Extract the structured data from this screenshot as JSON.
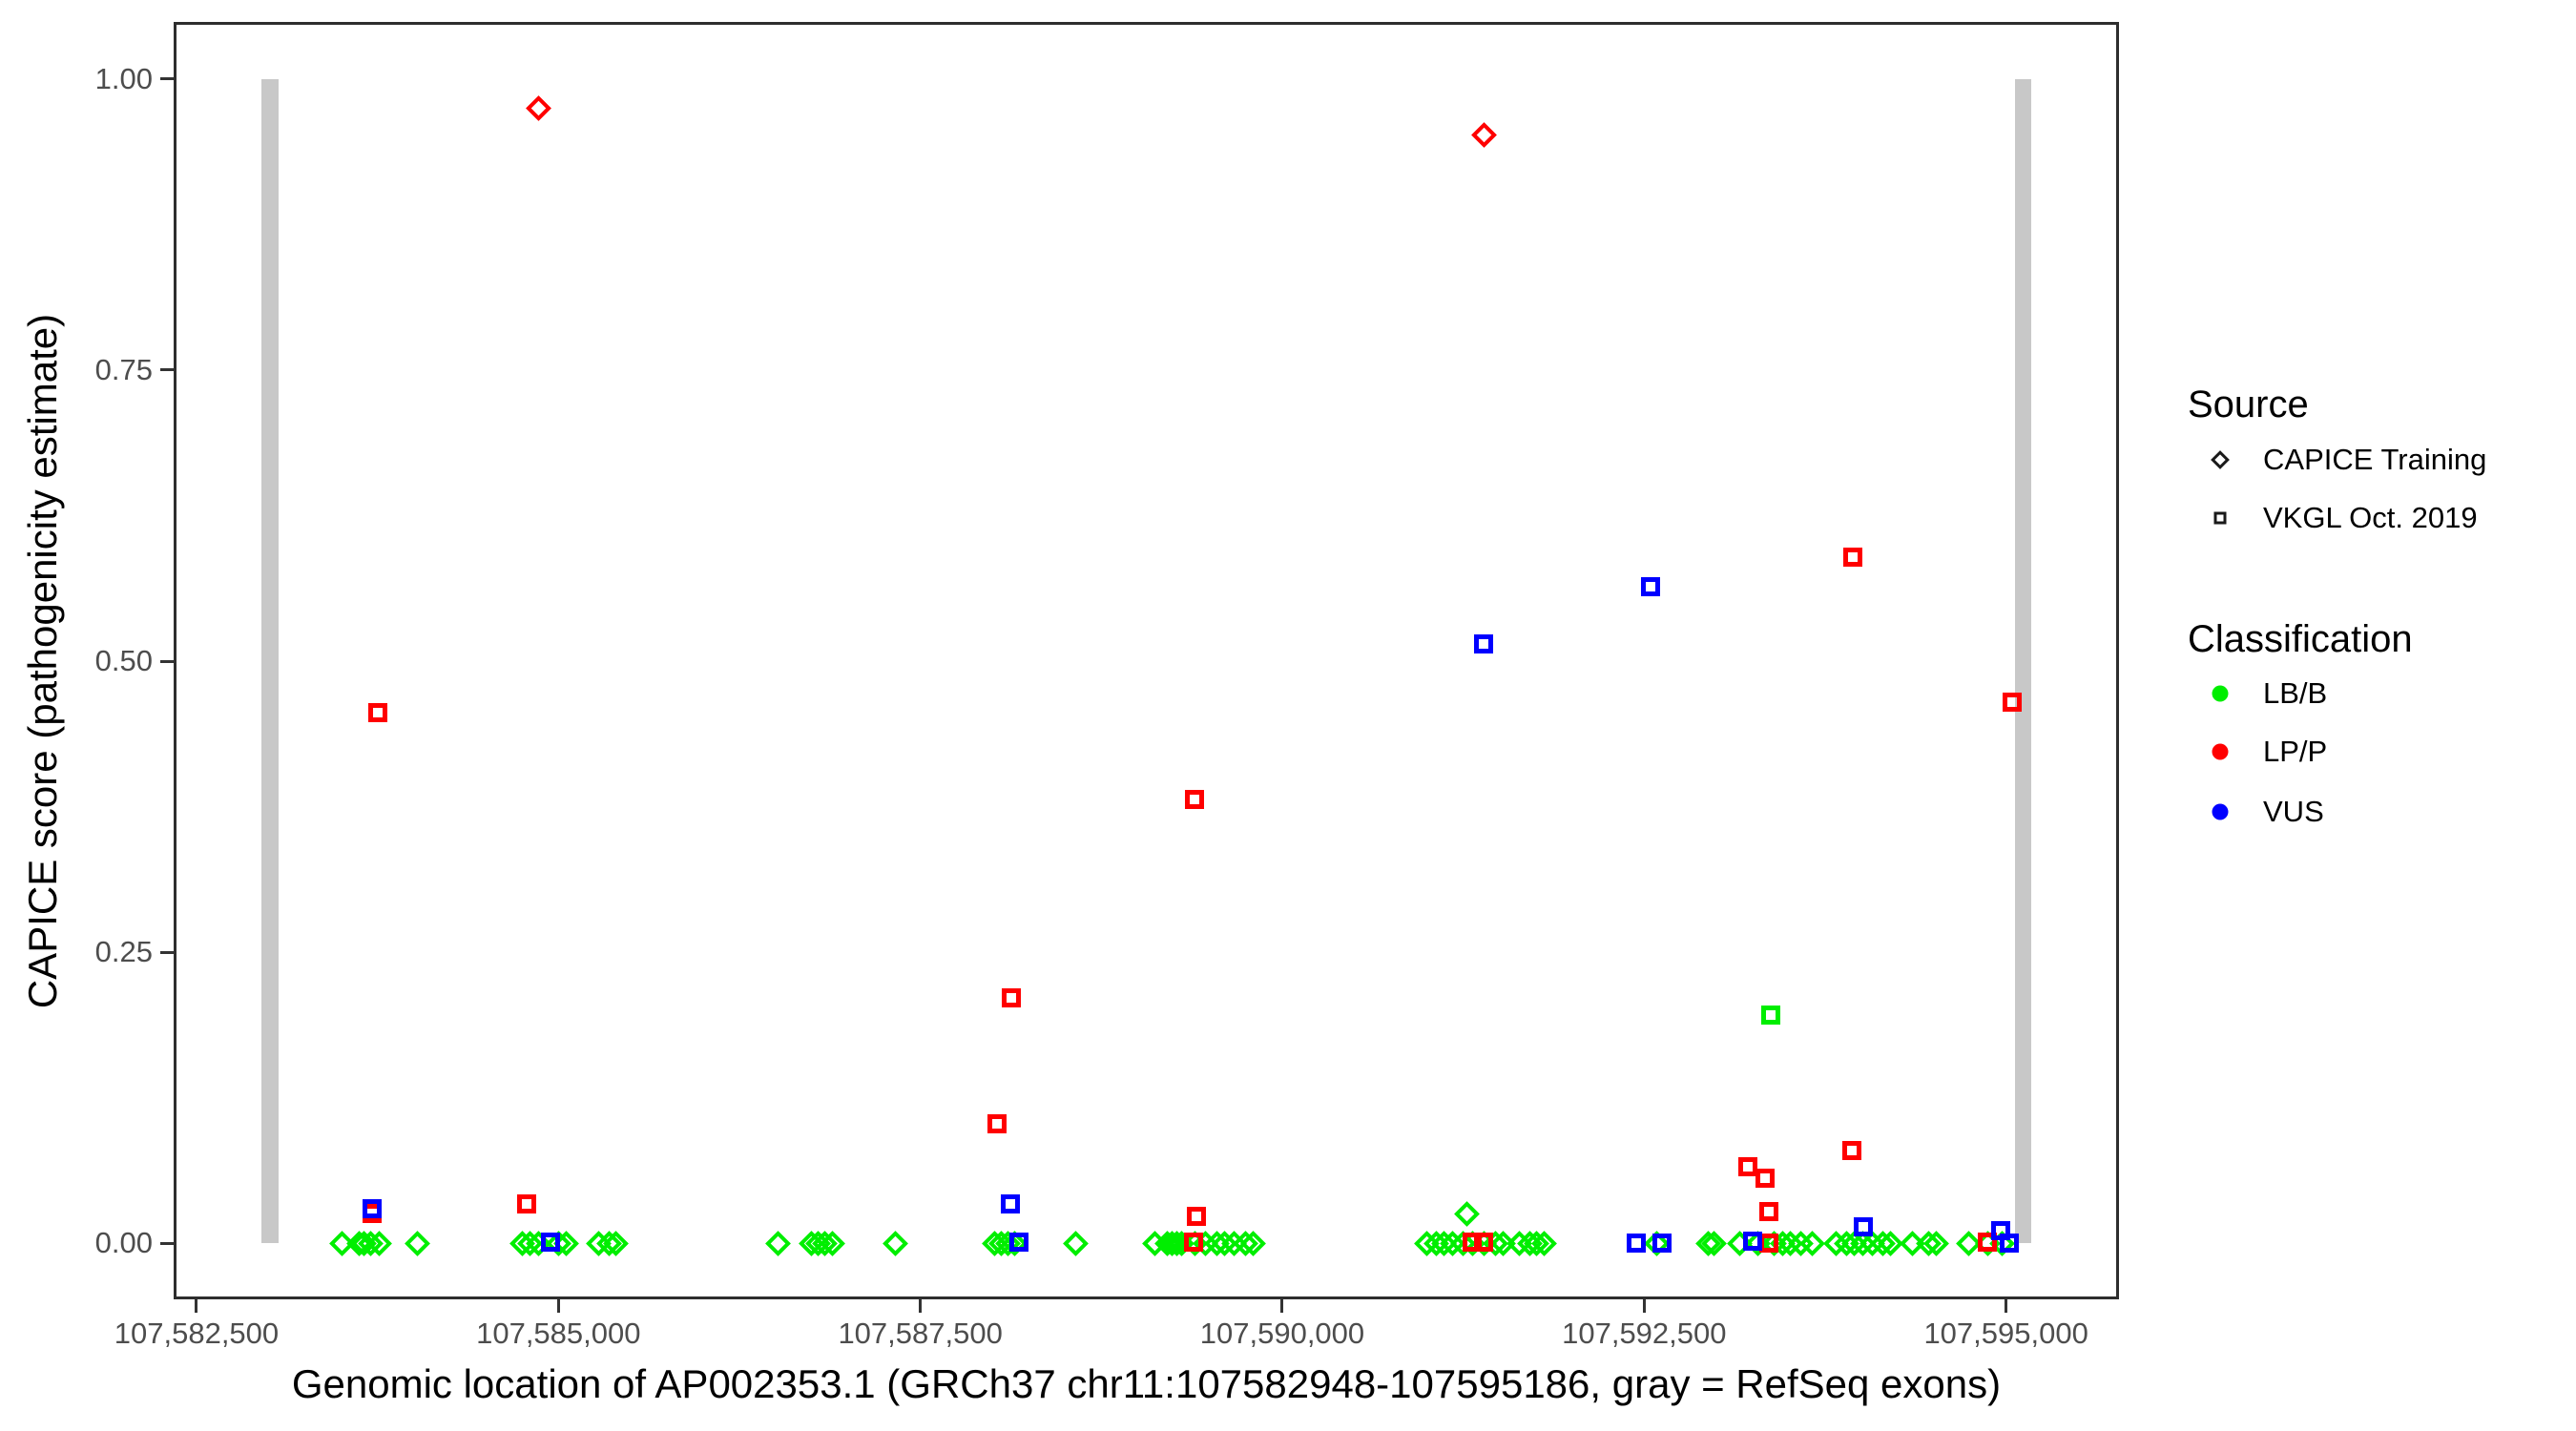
{
  "figure": {
    "y_axis": {
      "title": "CAPICE score (pathogenicity estimate)",
      "ticks": [
        {
          "label": "0.00",
          "value": 0.0
        },
        {
          "label": "0.25",
          "value": 0.25
        },
        {
          "label": "0.50",
          "value": 0.5
        },
        {
          "label": "0.75",
          "value": 0.75
        },
        {
          "label": "1.00",
          "value": 1.0
        }
      ]
    },
    "x_axis": {
      "title": "Genomic location of AP002353.1 (GRCh37 chr11:107582948-107595186, gray = RefSeq exons)",
      "ticks": [
        {
          "label": "107,582,500",
          "value": 107582500
        },
        {
          "label": "107,585,000",
          "value": 107585000
        },
        {
          "label": "107,587,500",
          "value": 107587500
        },
        {
          "label": "107,590,000",
          "value": 107590000
        },
        {
          "label": "107,592,500",
          "value": 107592500
        },
        {
          "label": "107,595,000",
          "value": 107595000
        }
      ]
    },
    "legend": {
      "source": {
        "title": "Source",
        "items": [
          {
            "label": "CAPICE Training",
            "marker": "diamond"
          },
          {
            "label": "VKGL Oct. 2019",
            "marker": "square"
          }
        ]
      },
      "classification": {
        "title": "Classification",
        "items": [
          {
            "label": "LB/B",
            "color": "#00ee00"
          },
          {
            "label": "LP/P",
            "color": "#ff0000"
          },
          {
            "label": "VUS",
            "color": "#0000ff"
          }
        ]
      }
    }
  },
  "chart_data": {
    "type": "scatter",
    "title": "",
    "xlabel": "Genomic location of AP002353.1 (GRCh37 chr11:107582948-107595186, gray = RefSeq exons)",
    "ylabel": "CAPICE score (pathogenicity estimate)",
    "xlim": [
      107582342,
      107595780
    ],
    "ylim": [
      -0.048,
      1.049
    ],
    "grid": false,
    "legend_position": "right",
    "exon_color": "#c8c8c8",
    "exons": [
      {
        "start": 107582948,
        "end": 107583068,
        "score_from": 0.0,
        "score_to": 1.0
      },
      {
        "start": 107595063,
        "end": 107595175,
        "score_from": 0.0,
        "score_to": 1.0
      }
    ],
    "series": [
      {
        "name": "CAPICE Training LB/B",
        "source": "CAPICE Training",
        "classification": "LB/B",
        "marker": "diamond",
        "color": "#00ee00",
        "points": [
          [
            107583502,
            0.0
          ],
          [
            107583627,
            0.0
          ],
          [
            107583660,
            0.0
          ],
          [
            107583706,
            0.0
          ],
          [
            107583759,
            0.0
          ],
          [
            107584029,
            0.0
          ],
          [
            107584748,
            0.0
          ],
          [
            107584801,
            0.0
          ],
          [
            107584860,
            0.0
          ],
          [
            107584998,
            0.0
          ],
          [
            107585051,
            0.0
          ],
          [
            107585275,
            0.0
          ],
          [
            107585348,
            0.0
          ],
          [
            107585394,
            0.0
          ],
          [
            107586514,
            0.0
          ],
          [
            107586745,
            0.0
          ],
          [
            107586791,
            0.0
          ],
          [
            107586837,
            0.0
          ],
          [
            107586890,
            0.0
          ],
          [
            107587325,
            0.0
          ],
          [
            107588012,
            0.0
          ],
          [
            107588058,
            0.0
          ],
          [
            107588104,
            0.0
          ],
          [
            107588150,
            0.0
          ],
          [
            107588571,
            0.0
          ],
          [
            107589118,
            0.0
          ],
          [
            107589203,
            0.0
          ],
          [
            107589236,
            0.0
          ],
          [
            107589269,
            0.0
          ],
          [
            107589302,
            0.0
          ],
          [
            107589395,
            0.0
          ],
          [
            107589467,
            0.0
          ],
          [
            107589546,
            0.0
          ],
          [
            107589599,
            0.0
          ],
          [
            107589665,
            0.0
          ],
          [
            107589744,
            0.0
          ],
          [
            107589797,
            0.0
          ],
          [
            107590996,
            0.0
          ],
          [
            107591062,
            0.0
          ],
          [
            107591115,
            0.0
          ],
          [
            107591174,
            0.0
          ],
          [
            107591247,
            0.0
          ],
          [
            107591273,
            0.025
          ],
          [
            107591313,
            0.0
          ],
          [
            107591392,
            0.0
          ],
          [
            107591471,
            0.0
          ],
          [
            107591523,
            0.0
          ],
          [
            107591635,
            0.0
          ],
          [
            107591708,
            0.0
          ],
          [
            107591754,
            0.0
          ],
          [
            107591807,
            0.0
          ],
          [
            107592590,
            0.0
          ],
          [
            107592941,
            0.0
          ],
          [
            107592980,
            0.0
          ],
          [
            107593158,
            0.0
          ],
          [
            107593284,
            0.0
          ],
          [
            107593396,
            0.0
          ],
          [
            107593455,
            0.0
          ],
          [
            107593508,
            0.0
          ],
          [
            107593580,
            0.0
          ],
          [
            107593659,
            0.0
          ],
          [
            107593824,
            0.0
          ],
          [
            107593897,
            0.0
          ],
          [
            107593949,
            0.0
          ],
          [
            107594009,
            0.0
          ],
          [
            107594075,
            0.0
          ],
          [
            107594147,
            0.0
          ],
          [
            107594200,
            0.0
          ],
          [
            107594352,
            0.0
          ],
          [
            107594464,
            0.0
          ],
          [
            107594515,
            0.0
          ],
          [
            107594740,
            0.0
          ],
          [
            107594872,
            0.0
          ],
          [
            107594971,
            0.0
          ]
        ]
      },
      {
        "name": "CAPICE Training LP/P",
        "source": "CAPICE Training",
        "classification": "LP/P",
        "marker": "diamond",
        "color": "#ff0000",
        "points": [
          [
            107584860,
            0.975
          ],
          [
            107591392,
            0.952
          ]
        ]
      },
      {
        "name": "VKGL Oct. 2019 LB/B",
        "source": "VKGL Oct. 2019",
        "classification": "LB/B",
        "marker": "square",
        "color": "#00ee00",
        "points": [
          [
            107593375,
            0.196
          ]
        ]
      },
      {
        "name": "VKGL Oct. 2019 LP/P",
        "source": "VKGL Oct. 2019",
        "classification": "LP/P",
        "marker": "square",
        "color": "#ff0000",
        "points": [
          [
            107583716,
            0.026
          ],
          [
            107583752,
            0.456
          ],
          [
            107584781,
            0.034
          ],
          [
            107588030,
            0.103
          ],
          [
            107588128,
            0.211
          ],
          [
            107589388,
            0.001
          ],
          [
            107589394,
            0.381
          ],
          [
            107589408,
            0.023
          ],
          [
            107591313,
            0.001
          ],
          [
            107591392,
            0.001
          ],
          [
            107593217,
            0.066
          ],
          [
            107593336,
            0.056
          ],
          [
            107593363,
            0.027
          ],
          [
            107593363,
            0.0
          ],
          [
            107593935,
            0.08
          ],
          [
            107593942,
            0.589
          ],
          [
            107594872,
            0.001
          ],
          [
            107595042,
            0.465
          ]
        ]
      },
      {
        "name": "VKGL Oct. 2019 VUS",
        "source": "VKGL Oct. 2019",
        "classification": "VUS",
        "marker": "square",
        "color": "#0000ff",
        "points": [
          [
            107583716,
            0.03
          ],
          [
            107584946,
            0.001
          ],
          [
            107588122,
            0.034
          ],
          [
            107588181,
            0.001
          ],
          [
            107591392,
            0.515
          ],
          [
            107592447,
            0.0
          ],
          [
            107592545,
            0.564
          ],
          [
            107592625,
            0.0
          ],
          [
            107593251,
            0.002
          ],
          [
            107594014,
            0.014
          ],
          [
            107594964,
            0.011
          ],
          [
            107595023,
            0.0
          ]
        ]
      }
    ]
  }
}
